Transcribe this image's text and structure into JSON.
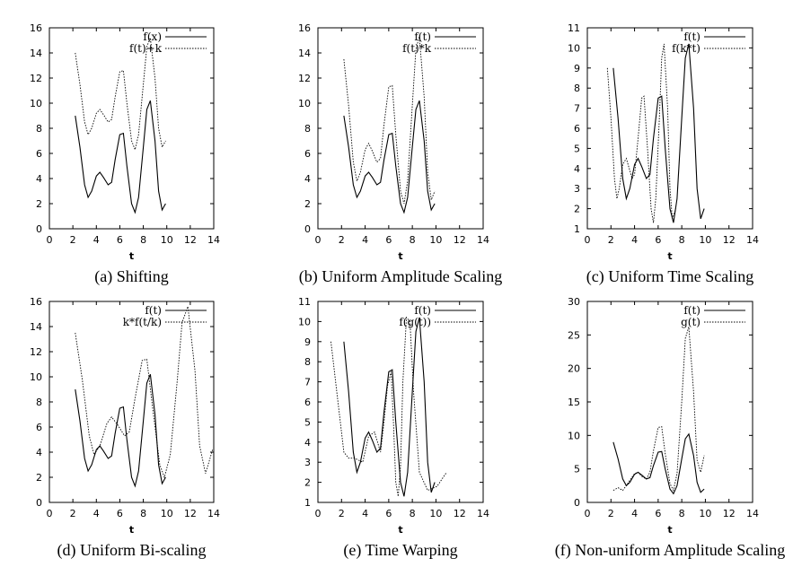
{
  "figure": {
    "chart_data": [
      {
        "type": "line",
        "caption": "(a) Shifting",
        "xlabel": "t",
        "xlim": [
          0,
          14
        ],
        "ylim": [
          0,
          16
        ],
        "xticks": [
          0,
          2,
          4,
          6,
          8,
          10,
          12,
          14
        ],
        "yticks": [
          0,
          2,
          4,
          6,
          8,
          10,
          12,
          14,
          16
        ],
        "legend_position": "top-right",
        "series": [
          {
            "name": "f(x)",
            "style": "solid",
            "x": [
              2.2,
              2.6,
              3.0,
              3.3,
              3.6,
              4.0,
              4.3,
              4.6,
              5.0,
              5.3,
              5.6,
              6.0,
              6.3,
              6.6,
              7.0,
              7.3,
              7.6,
              8.0,
              8.3,
              8.6,
              9.0,
              9.3,
              9.6,
              9.9
            ],
            "y": [
              9.0,
              6.5,
              3.5,
              2.5,
              3.0,
              4.2,
              4.5,
              4.1,
              3.5,
              3.7,
              5.5,
              7.5,
              7.6,
              5.0,
              2.0,
              1.3,
              2.5,
              6.5,
              9.5,
              10.2,
              7.0,
              3.0,
              1.5,
              2.0
            ]
          },
          {
            "name": "f(t)+k",
            "style": "dotted",
            "x": [
              2.2,
              2.6,
              3.0,
              3.3,
              3.6,
              4.0,
              4.3,
              4.6,
              5.0,
              5.3,
              5.6,
              6.0,
              6.3,
              6.6,
              7.0,
              7.3,
              7.6,
              8.0,
              8.3,
              8.6,
              9.0,
              9.3,
              9.6,
              9.9
            ],
            "y": [
              14.0,
              11.5,
              8.5,
              7.5,
              8.0,
              9.2,
              9.5,
              9.1,
              8.5,
              8.7,
              10.5,
              12.5,
              12.6,
              10.0,
              7.0,
              6.3,
              7.5,
              11.5,
              14.5,
              15.2,
              12.0,
              8.0,
              6.5,
              7.0
            ]
          }
        ]
      },
      {
        "type": "line",
        "caption": "(b) Uniform Amplitude Scaling",
        "xlabel": "t",
        "xlim": [
          0,
          14
        ],
        "ylim": [
          0,
          16
        ],
        "xticks": [
          0,
          2,
          4,
          6,
          8,
          10,
          12,
          14
        ],
        "yticks": [
          0,
          2,
          4,
          6,
          8,
          10,
          12,
          14,
          16
        ],
        "legend_position": "top-right",
        "series": [
          {
            "name": "f(t)",
            "style": "solid",
            "x": [
              2.2,
              2.6,
              3.0,
              3.3,
              3.6,
              4.0,
              4.3,
              4.6,
              5.0,
              5.3,
              5.6,
              6.0,
              6.3,
              6.6,
              7.0,
              7.3,
              7.6,
              8.0,
              8.3,
              8.6,
              9.0,
              9.3,
              9.6,
              9.9
            ],
            "y": [
              9.0,
              6.5,
              3.5,
              2.5,
              3.0,
              4.2,
              4.5,
              4.1,
              3.5,
              3.7,
              5.5,
              7.5,
              7.6,
              5.0,
              2.0,
              1.3,
              2.5,
              6.5,
              9.5,
              10.2,
              7.0,
              3.0,
              1.5,
              2.0
            ]
          },
          {
            "name": "f(t)*k",
            "style": "dotted",
            "x": [
              2.2,
              2.6,
              3.0,
              3.3,
              3.6,
              4.0,
              4.3,
              4.6,
              5.0,
              5.3,
              5.6,
              6.0,
              6.3,
              6.6,
              7.0,
              7.3,
              7.6,
              8.0,
              8.3,
              8.6,
              9.0,
              9.3,
              9.6,
              9.9
            ],
            "y": [
              13.5,
              9.8,
              5.3,
              3.8,
              4.5,
              6.3,
              6.8,
              6.2,
              5.3,
              5.6,
              8.3,
              11.3,
              11.4,
              7.5,
              3.0,
              2.0,
              3.8,
              9.8,
              14.3,
              15.3,
              10.5,
              4.5,
              2.3,
              3.0
            ]
          }
        ]
      },
      {
        "type": "line",
        "caption": "(c) Uniform Time Scaling",
        "xlabel": "t",
        "xlim": [
          0,
          14
        ],
        "ylim": [
          1,
          11
        ],
        "xticks": [
          0,
          2,
          4,
          6,
          8,
          10,
          12,
          14
        ],
        "yticks": [
          1,
          2,
          3,
          4,
          5,
          6,
          7,
          8,
          9,
          10,
          11
        ],
        "legend_position": "top-right",
        "series": [
          {
            "name": "f(t)",
            "style": "solid",
            "x": [
              2.2,
              2.6,
              3.0,
              3.3,
              3.6,
              4.0,
              4.3,
              4.6,
              5.0,
              5.3,
              5.6,
              6.0,
              6.3,
              6.6,
              7.0,
              7.3,
              7.6,
              8.0,
              8.3,
              8.6,
              9.0,
              9.3,
              9.6,
              9.9
            ],
            "y": [
              9.0,
              6.5,
              3.5,
              2.5,
              3.0,
              4.2,
              4.5,
              4.1,
              3.5,
              3.7,
              5.5,
              7.5,
              7.6,
              5.0,
              2.0,
              1.3,
              2.5,
              6.5,
              9.5,
              10.2,
              7.0,
              3.0,
              1.5,
              2.0
            ]
          },
          {
            "name": "f(k*t)",
            "style": "dotted",
            "x": [
              1.7,
              2.0,
              2.3,
              2.5,
              2.7,
              3.0,
              3.3,
              3.5,
              3.8,
              4.0,
              4.3,
              4.6,
              4.8,
              5.1,
              5.4,
              5.6,
              5.8,
              6.1,
              6.3,
              6.5,
              6.8,
              7.0,
              7.2,
              7.5
            ],
            "y": [
              9.0,
              6.5,
              3.5,
              2.5,
              3.0,
              4.2,
              4.5,
              4.1,
              3.5,
              3.7,
              5.5,
              7.5,
              7.6,
              5.0,
              2.0,
              1.3,
              2.5,
              6.5,
              9.5,
              10.2,
              7.0,
              3.0,
              1.5,
              2.0
            ]
          }
        ]
      },
      {
        "type": "line",
        "caption": "(d) Uniform Bi-scaling",
        "xlabel": "t",
        "xlim": [
          0,
          14
        ],
        "ylim": [
          0,
          16
        ],
        "xticks": [
          0,
          2,
          4,
          6,
          8,
          10,
          12,
          14
        ],
        "yticks": [
          0,
          2,
          4,
          6,
          8,
          10,
          12,
          14,
          16
        ],
        "legend_position": "top-right",
        "series": [
          {
            "name": "f(t)",
            "style": "solid",
            "x": [
              2.2,
              2.6,
              3.0,
              3.3,
              3.6,
              4.0,
              4.3,
              4.6,
              5.0,
              5.3,
              5.6,
              6.0,
              6.3,
              6.6,
              7.0,
              7.3,
              7.6,
              8.0,
              8.3,
              8.6,
              9.0,
              9.3,
              9.6,
              9.9
            ],
            "y": [
              9.0,
              6.5,
              3.5,
              2.5,
              3.0,
              4.2,
              4.5,
              4.1,
              3.5,
              3.7,
              5.5,
              7.5,
              7.6,
              5.0,
              2.0,
              1.3,
              2.5,
              6.5,
              9.5,
              10.2,
              7.0,
              3.0,
              1.5,
              2.0
            ]
          },
          {
            "name": "k*f(t/k)",
            "style": "dotted",
            "x": [
              2.2,
              2.8,
              3.4,
              3.8,
              4.3,
              4.9,
              5.3,
              5.8,
              6.4,
              6.8,
              7.3,
              7.9,
              8.3,
              8.8,
              9.4,
              9.8,
              10.3,
              10.9,
              11.3,
              11.8,
              12.4,
              12.8,
              13.3,
              13.9
            ],
            "y": [
              13.5,
              9.8,
              5.3,
              3.8,
              4.5,
              6.3,
              6.8,
              6.2,
              5.3,
              5.6,
              8.3,
              11.3,
              11.4,
              7.5,
              3.0,
              2.0,
              3.8,
              9.8,
              14.3,
              15.6,
              10.5,
              4.5,
              2.3,
              4.2
            ]
          }
        ]
      },
      {
        "type": "line",
        "caption": "(e) Time Warping",
        "xlabel": "t",
        "xlim": [
          0,
          14
        ],
        "ylim": [
          1,
          11
        ],
        "xticks": [
          0,
          2,
          4,
          6,
          8,
          10,
          12,
          14
        ],
        "yticks": [
          1,
          2,
          3,
          4,
          5,
          6,
          7,
          8,
          9,
          10,
          11
        ],
        "legend_position": "top-right",
        "series": [
          {
            "name": "f(t)",
            "style": "solid",
            "x": [
              2.2,
              2.6,
              3.0,
              3.3,
              3.6,
              4.0,
              4.3,
              4.6,
              5.0,
              5.3,
              5.6,
              6.0,
              6.3,
              6.6,
              7.0,
              7.3,
              7.6,
              8.0,
              8.3,
              8.6,
              9.0,
              9.3,
              9.6,
              9.9
            ],
            "y": [
              9.0,
              6.5,
              3.5,
              2.5,
              3.0,
              4.2,
              4.5,
              4.1,
              3.5,
              3.7,
              5.5,
              7.5,
              7.6,
              5.0,
              2.0,
              1.3,
              2.5,
              6.5,
              9.5,
              10.2,
              7.0,
              3.0,
              1.5,
              2.0
            ]
          },
          {
            "name": "f(g(t))",
            "style": "dotted",
            "x": [
              1.1,
              1.6,
              2.2,
              2.6,
              3.1,
              3.8,
              4.3,
              4.8,
              5.3,
              5.6,
              5.9,
              6.2,
              6.4,
              6.6,
              6.8,
              7.0,
              7.2,
              7.5,
              7.8,
              8.1,
              8.6,
              9.3,
              10.1,
              10.9
            ],
            "y": [
              9.0,
              6.5,
              3.5,
              3.2,
              3.2,
              3.0,
              4.3,
              4.5,
              3.5,
              5.0,
              6.8,
              7.5,
              5.0,
              2.0,
              1.3,
              2.8,
              7.0,
              10.2,
              10.0,
              6.5,
              2.5,
              1.6,
              1.8,
              2.5
            ]
          }
        ]
      },
      {
        "type": "line",
        "caption": "(f) Non-uniform Amplitude Scaling",
        "xlabel": "t",
        "xlim": [
          0,
          14
        ],
        "ylim": [
          0,
          30
        ],
        "xticks": [
          0,
          2,
          4,
          6,
          8,
          10,
          12,
          14
        ],
        "yticks": [
          0,
          5,
          10,
          15,
          20,
          25,
          30
        ],
        "legend_position": "top-right",
        "series": [
          {
            "name": "f(t)",
            "style": "solid",
            "x": [
              2.2,
              2.6,
              3.0,
              3.3,
              3.6,
              4.0,
              4.3,
              4.6,
              5.0,
              5.3,
              5.6,
              6.0,
              6.3,
              6.6,
              7.0,
              7.3,
              7.6,
              8.0,
              8.3,
              8.6,
              9.0,
              9.3,
              9.6,
              9.9
            ],
            "y": [
              9.0,
              6.5,
              3.5,
              2.5,
              3.0,
              4.2,
              4.5,
              4.1,
              3.5,
              3.7,
              5.5,
              7.5,
              7.6,
              5.0,
              2.0,
              1.3,
              2.5,
              6.5,
              9.5,
              10.2,
              7.0,
              3.0,
              1.5,
              2.0
            ]
          },
          {
            "name": "g(t)",
            "style": "dotted",
            "x": [
              2.2,
              2.6,
              3.0,
              3.3,
              3.6,
              4.0,
              4.3,
              4.6,
              5.0,
              5.3,
              5.6,
              6.0,
              6.3,
              6.6,
              7.0,
              7.3,
              7.6,
              8.0,
              8.3,
              8.6,
              9.0,
              9.3,
              9.6,
              9.9
            ],
            "y": [
              1.8,
              2.2,
              1.8,
              2.5,
              3.3,
              4.3,
              4.5,
              3.9,
              3.5,
              4.5,
              7.7,
              11.2,
              11.3,
              7.3,
              2.8,
              1.8,
              4.3,
              15.0,
              24.5,
              26.2,
              16.5,
              6.3,
              4.5,
              7.0
            ]
          }
        ]
      }
    ]
  }
}
